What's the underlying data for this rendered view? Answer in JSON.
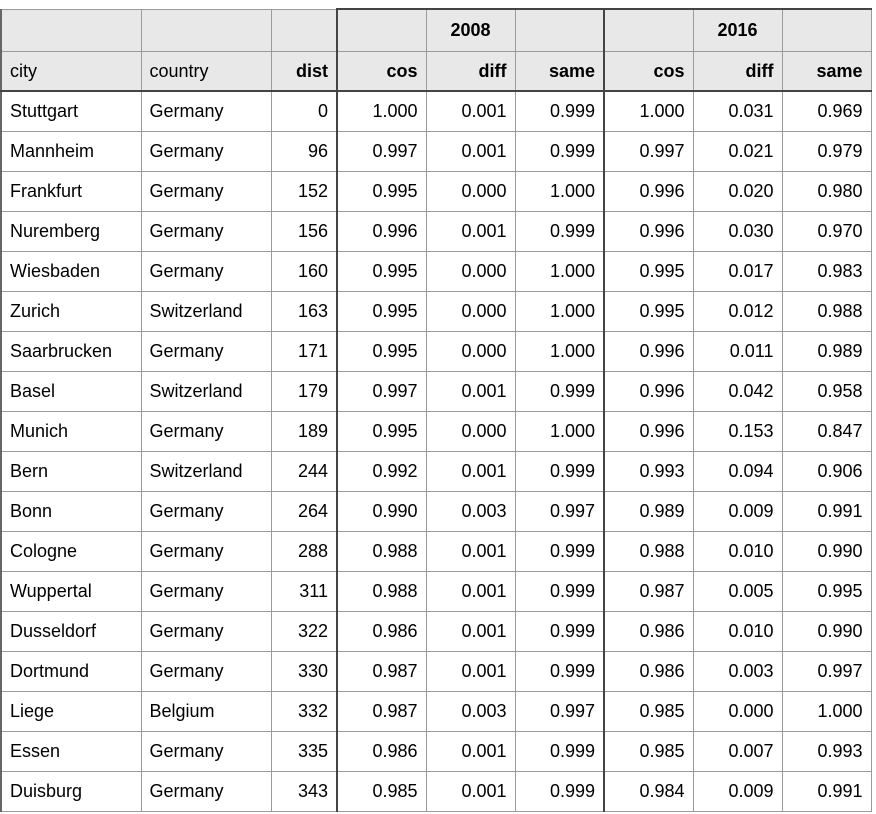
{
  "groups": {
    "g2008": "2008",
    "g2016": "2016"
  },
  "headers": [
    "city",
    "country",
    "dist",
    "cos",
    "diff",
    "same",
    "cos",
    "diff",
    "same"
  ],
  "rows": [
    [
      "Stuttgart",
      "Germany",
      "0",
      "1.000",
      "0.001",
      "0.999",
      "1.000",
      "0.031",
      "0.969"
    ],
    [
      "Mannheim",
      "Germany",
      "96",
      "0.997",
      "0.001",
      "0.999",
      "0.997",
      "0.021",
      "0.979"
    ],
    [
      "Frankfurt",
      "Germany",
      "152",
      "0.995",
      "0.000",
      "1.000",
      "0.996",
      "0.020",
      "0.980"
    ],
    [
      "Nuremberg",
      "Germany",
      "156",
      "0.996",
      "0.001",
      "0.999",
      "0.996",
      "0.030",
      "0.970"
    ],
    [
      "Wiesbaden",
      "Germany",
      "160",
      "0.995",
      "0.000",
      "1.000",
      "0.995",
      "0.017",
      "0.983"
    ],
    [
      "Zurich",
      "Switzerland",
      "163",
      "0.995",
      "0.000",
      "1.000",
      "0.995",
      "0.012",
      "0.988"
    ],
    [
      "Saarbrucken",
      "Germany",
      "171",
      "0.995",
      "0.000",
      "1.000",
      "0.996",
      "0.011",
      "0.989"
    ],
    [
      "Basel",
      "Switzerland",
      "179",
      "0.997",
      "0.001",
      "0.999",
      "0.996",
      "0.042",
      "0.958"
    ],
    [
      "Munich",
      "Germany",
      "189",
      "0.995",
      "0.000",
      "1.000",
      "0.996",
      "0.153",
      "0.847"
    ],
    [
      "Bern",
      "Switzerland",
      "244",
      "0.992",
      "0.001",
      "0.999",
      "0.993",
      "0.094",
      "0.906"
    ],
    [
      "Bonn",
      "Germany",
      "264",
      "0.990",
      "0.003",
      "0.997",
      "0.989",
      "0.009",
      "0.991"
    ],
    [
      "Cologne",
      "Germany",
      "288",
      "0.988",
      "0.001",
      "0.999",
      "0.988",
      "0.010",
      "0.990"
    ],
    [
      "Wuppertal",
      "Germany",
      "311",
      "0.988",
      "0.001",
      "0.999",
      "0.987",
      "0.005",
      "0.995"
    ],
    [
      "Dusseldorf",
      "Germany",
      "322",
      "0.986",
      "0.001",
      "0.999",
      "0.986",
      "0.010",
      "0.990"
    ],
    [
      "Dortmund",
      "Germany",
      "330",
      "0.987",
      "0.001",
      "0.999",
      "0.986",
      "0.003",
      "0.997"
    ],
    [
      "Liege",
      "Belgium",
      "332",
      "0.987",
      "0.003",
      "0.997",
      "0.985",
      "0.000",
      "1.000"
    ],
    [
      "Essen",
      "Germany",
      "335",
      "0.986",
      "0.001",
      "0.999",
      "0.985",
      "0.007",
      "0.993"
    ],
    [
      "Duisburg",
      "Germany",
      "343",
      "0.985",
      "0.001",
      "0.999",
      "0.984",
      "0.009",
      "0.991"
    ]
  ]
}
